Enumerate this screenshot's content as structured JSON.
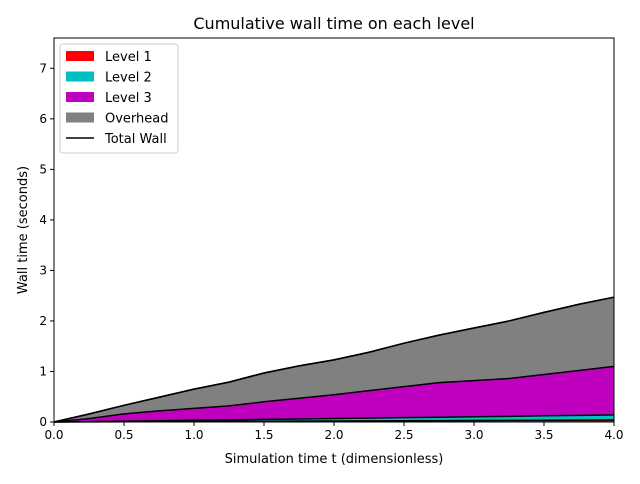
{
  "chart_data": {
    "type": "area",
    "stacked": true,
    "title": "Cumulative wall time on each level",
    "xlabel": "Simulation time t (dimensionless)",
    "ylabel": "Wall time (seconds)",
    "xlim": [
      0,
      4
    ],
    "ylim": [
      0,
      7.6
    ],
    "xticks": [
      "0.0",
      "0.5",
      "1.0",
      "1.5",
      "2.0",
      "2.5",
      "3.0",
      "3.5",
      "4.0"
    ],
    "yticks": [
      "0",
      "1",
      "2",
      "3",
      "4",
      "5",
      "6",
      "7"
    ],
    "x": [
      0,
      0.25,
      0.5,
      0.75,
      1.0,
      1.25,
      1.5,
      1.75,
      2.0,
      2.25,
      2.5,
      2.75,
      3.0,
      3.25,
      3.5,
      3.75,
      4.0
    ],
    "series": [
      {
        "name": "Level 1",
        "color": "#ff0000",
        "values": [
          0,
          0.002,
          0.005,
          0.007,
          0.01,
          0.012,
          0.015,
          0.017,
          0.02,
          0.022,
          0.025,
          0.027,
          0.03,
          0.032,
          0.035,
          0.037,
          0.04
        ]
      },
      {
        "name": "Level 2",
        "color": "#00bfbf",
        "values": [
          0,
          0.006,
          0.012,
          0.018,
          0.025,
          0.03,
          0.038,
          0.043,
          0.05,
          0.055,
          0.062,
          0.068,
          0.075,
          0.08,
          0.088,
          0.093,
          0.1
        ]
      },
      {
        "name": "Level 3",
        "color": "#bf00bf",
        "values": [
          0,
          0.06,
          0.143,
          0.195,
          0.235,
          0.278,
          0.347,
          0.41,
          0.47,
          0.543,
          0.613,
          0.685,
          0.715,
          0.748,
          0.817,
          0.89,
          0.96
        ]
      },
      {
        "name": "Overhead",
        "color": "#808080",
        "values": [
          0,
          0.09,
          0.17,
          0.27,
          0.38,
          0.47,
          0.57,
          0.64,
          0.69,
          0.76,
          0.86,
          0.94,
          1.04,
          1.14,
          1.23,
          1.31,
          1.37
        ]
      }
    ],
    "total": {
      "name": "Total Wall",
      "color": "#000000",
      "values": [
        0,
        0.158,
        0.33,
        0.49,
        0.65,
        0.79,
        0.97,
        1.11,
        1.23,
        1.38,
        1.56,
        1.72,
        1.86,
        2.0,
        2.17,
        2.33,
        2.47
      ]
    },
    "legend": "upper-left",
    "grid": false
  }
}
